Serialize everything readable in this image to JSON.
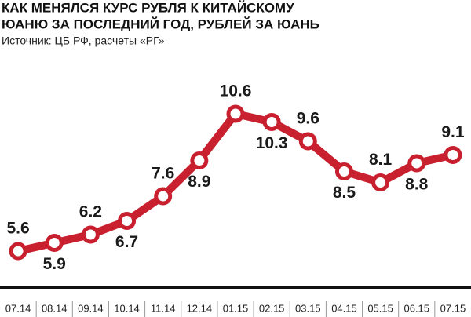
{
  "chart_data": {
    "type": "line",
    "title": [
      "КАК МЕНЯЛСЯ КУРС РУБЛЯ К КИТАЙСКОМУ",
      "ЮАНЮ ЗА ПОСЛЕДНИЙ ГОД, РУБЛЕЙ ЗА ЮАНЬ"
    ],
    "subtitle": "Источник: ЦБ РФ, расчеты «РГ»",
    "categories": [
      "07.14",
      "08.14",
      "09.14",
      "10.14",
      "11.14",
      "12.14",
      "01.15",
      "02.15",
      "03.15",
      "04.15",
      "05.15",
      "06.15",
      "07.15"
    ],
    "values": [
      5.6,
      5.9,
      6.2,
      6.7,
      7.6,
      8.9,
      10.6,
      10.3,
      9.6,
      8.5,
      8.1,
      8.8,
      9.1
    ],
    "color": "#c8202f"
  }
}
